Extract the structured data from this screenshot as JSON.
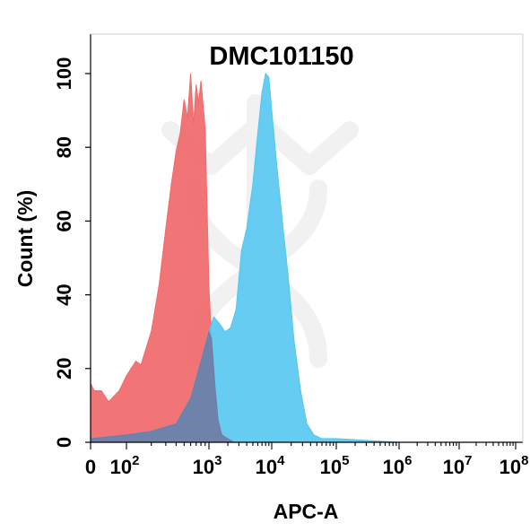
{
  "chart_data": {
    "type": "area",
    "title": "DMC101150",
    "xlabel": "APC-A",
    "ylabel": "Count  (%)",
    "x_scale": "log",
    "ylim": [
      0,
      100
    ],
    "grid": false,
    "y_ticks": [
      "0",
      "20",
      "40",
      "60",
      "80",
      "100"
    ],
    "x_ticks": [
      {
        "base": "0",
        "exp": ""
      },
      {
        "base": "10",
        "exp": "2"
      },
      {
        "base": "10",
        "exp": "3"
      },
      {
        "base": "10",
        "exp": "4"
      },
      {
        "base": "10",
        "exp": "5"
      },
      {
        "base": "10",
        "exp": "6"
      },
      {
        "base": "10",
        "exp": "7"
      },
      {
        "base": "10",
        "exp": "8"
      }
    ],
    "series": [
      {
        "color": "#f0696b",
        "x": [
          0,
          10,
          30,
          50,
          80,
          100,
          130,
          150,
          200,
          250,
          300,
          350,
          400,
          450,
          500,
          550,
          600,
          650,
          700,
          750,
          800,
          900,
          1000,
          1100,
          1250,
          1400,
          1600,
          2000,
          2500
        ],
        "y": [
          16,
          14,
          14,
          11,
          14,
          18,
          22,
          21,
          30,
          43,
          58,
          70,
          79,
          84,
          93,
          88,
          100,
          86,
          97,
          92,
          98,
          85,
          42,
          28,
          15,
          6,
          2,
          1,
          0
        ]
      },
      {
        "color": "#56c6ef",
        "x": [
          0,
          100,
          200,
          400,
          600,
          800,
          1000,
          1200,
          1500,
          1800,
          2200,
          2700,
          3300,
          4000,
          5000,
          6000,
          7000,
          8000,
          9000,
          10000,
          12000,
          15000,
          18000,
          22000,
          28000,
          35000,
          45000,
          60000,
          100000,
          300000,
          1000000
        ],
        "y": [
          1,
          2,
          3,
          5,
          12,
          22,
          30,
          34,
          32,
          30,
          31,
          36,
          52,
          58,
          70,
          84,
          95,
          100,
          99,
          90,
          75,
          58,
          45,
          28,
          14,
          5,
          2,
          1,
          1,
          0.5,
          0
        ]
      },
      {
        "color": "#6f7ea6",
        "x": [
          0,
          100,
          200,
          400,
          600,
          800,
          1000,
          1100,
          1250,
          1400,
          1600,
          2000,
          2500
        ],
        "y": [
          1,
          2,
          3,
          5,
          12,
          22,
          30,
          28,
          15,
          6,
          2,
          1,
          0
        ]
      }
    ]
  }
}
